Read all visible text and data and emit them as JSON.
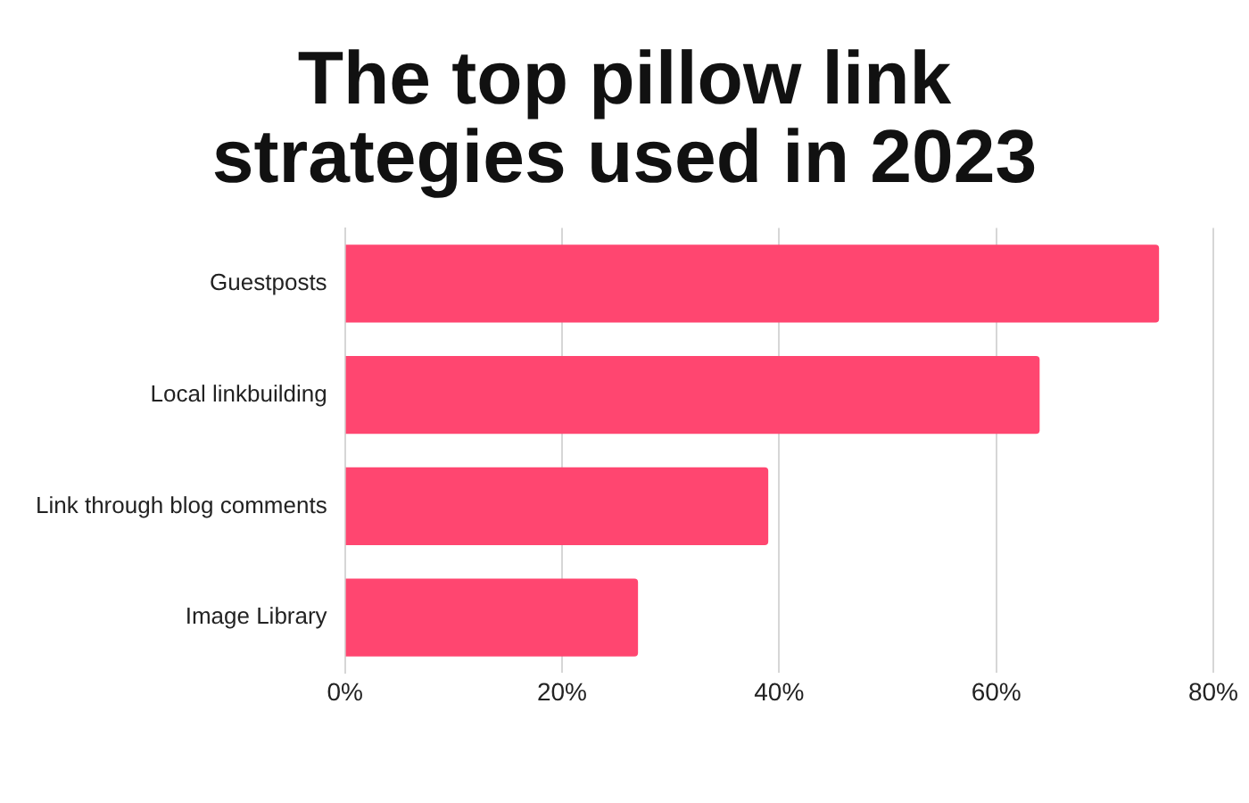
{
  "chart_data": {
    "type": "bar",
    "orientation": "horizontal",
    "title": "The top pillow link strategies used in 2023",
    "categories": [
      "Guestposts",
      "Local linkbuilding",
      "Link through blog comments",
      "Image Library"
    ],
    "values": [
      75,
      64,
      39,
      27
    ],
    "color": "#ff4670",
    "xlim": [
      0,
      80
    ],
    "xticks": [
      {
        "value": 0,
        "label": "0%"
      },
      {
        "value": 20,
        "label": "20%"
      },
      {
        "value": 40,
        "label": "40%"
      },
      {
        "value": 60,
        "label": "60%"
      },
      {
        "value": 80,
        "label": "80%"
      }
    ],
    "grid": "x",
    "legend": false
  }
}
